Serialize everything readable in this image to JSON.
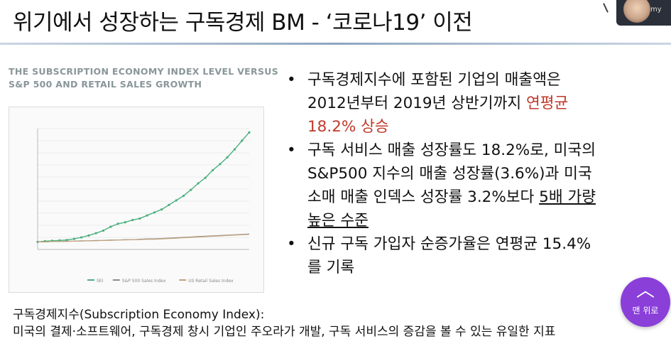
{
  "slide": {
    "title": "위기에서 성장하는 구독경제 BM - ‘코로나19’ 이전"
  },
  "camera": {
    "name": "my"
  },
  "chart_title_lines": [
    "THE SUBSCRIPTION ECONOMY INDEX LEVEL VERSUS",
    "S&P 500 AND RETAIL SALES GROWTH"
  ],
  "bullets": {
    "b1": {
      "line1": "구독경제지수에 포함된 기업의 매출액은",
      "line2_a": "2012년부터 2019년 상반기까지 ",
      "line2_b": "연평균",
      "line3": "18.2% 상승"
    },
    "b2": {
      "line1": "구독 서비스 매출 성장률도 18.2%로, 미국의",
      "line2": "S&P500 지수의 매출 성장률(3.6%)과 미국",
      "line3_a": "소매 매출 인덱스 성장률 3.2%보다 ",
      "line3_b": "5배 가량",
      "line4": "높은 수준"
    },
    "b3": {
      "line1": "신규 구독 가입자 순증가율은 연평균 15.4%",
      "line2": "를 기록"
    }
  },
  "footer": {
    "line1": "구독경제지수(Subscription Economy Index):",
    "line2": "미국의 결제·소프트웨어, 구독경제 창시 기업인 주오라가 개발, 구독 서비스의 증감을 볼 수 있는 유일한 지표"
  },
  "top_button": {
    "label": "맨 위로",
    "icon": "chevron-up-icon"
  },
  "chart_data": {
    "type": "line",
    "title": "THE SUBSCRIPTION ECONOMY INDEX LEVEL VERSUS S&P 500 AND RETAIL SALES GROWTH",
    "x_count": 30,
    "ylim": [
      80,
      400
    ],
    "series": [
      {
        "name": "SEI",
        "color": "#4caf7f",
        "values": [
          100,
          102,
          103,
          104,
          105,
          108,
          112,
          117,
          123,
          130,
          140,
          148,
          152,
          158,
          162,
          170,
          178,
          186,
          198,
          210,
          222,
          238,
          255,
          270,
          290,
          306,
          324,
          345,
          368,
          390
        ]
      },
      {
        "name": "S&P 500 Sales Index",
        "color": "#8c8c8c",
        "values": [
          100,
          100,
          101,
          101,
          102,
          102,
          103,
          103,
          104,
          104,
          105,
          105,
          106,
          106,
          107,
          108,
          108,
          109,
          110,
          111,
          112,
          113,
          114,
          115,
          116,
          117,
          118,
          119,
          120,
          121
        ]
      },
      {
        "name": "US Retail Sales Index",
        "color": "#c4a27a",
        "values": [
          100,
          100,
          101,
          101,
          101,
          102,
          102,
          103,
          103,
          104,
          104,
          105,
          105,
          106,
          106,
          107,
          107,
          108,
          109,
          110,
          111,
          112,
          113,
          114,
          115,
          116,
          117,
          118,
          119,
          120
        ]
      }
    ],
    "legend_position": "bottom"
  }
}
